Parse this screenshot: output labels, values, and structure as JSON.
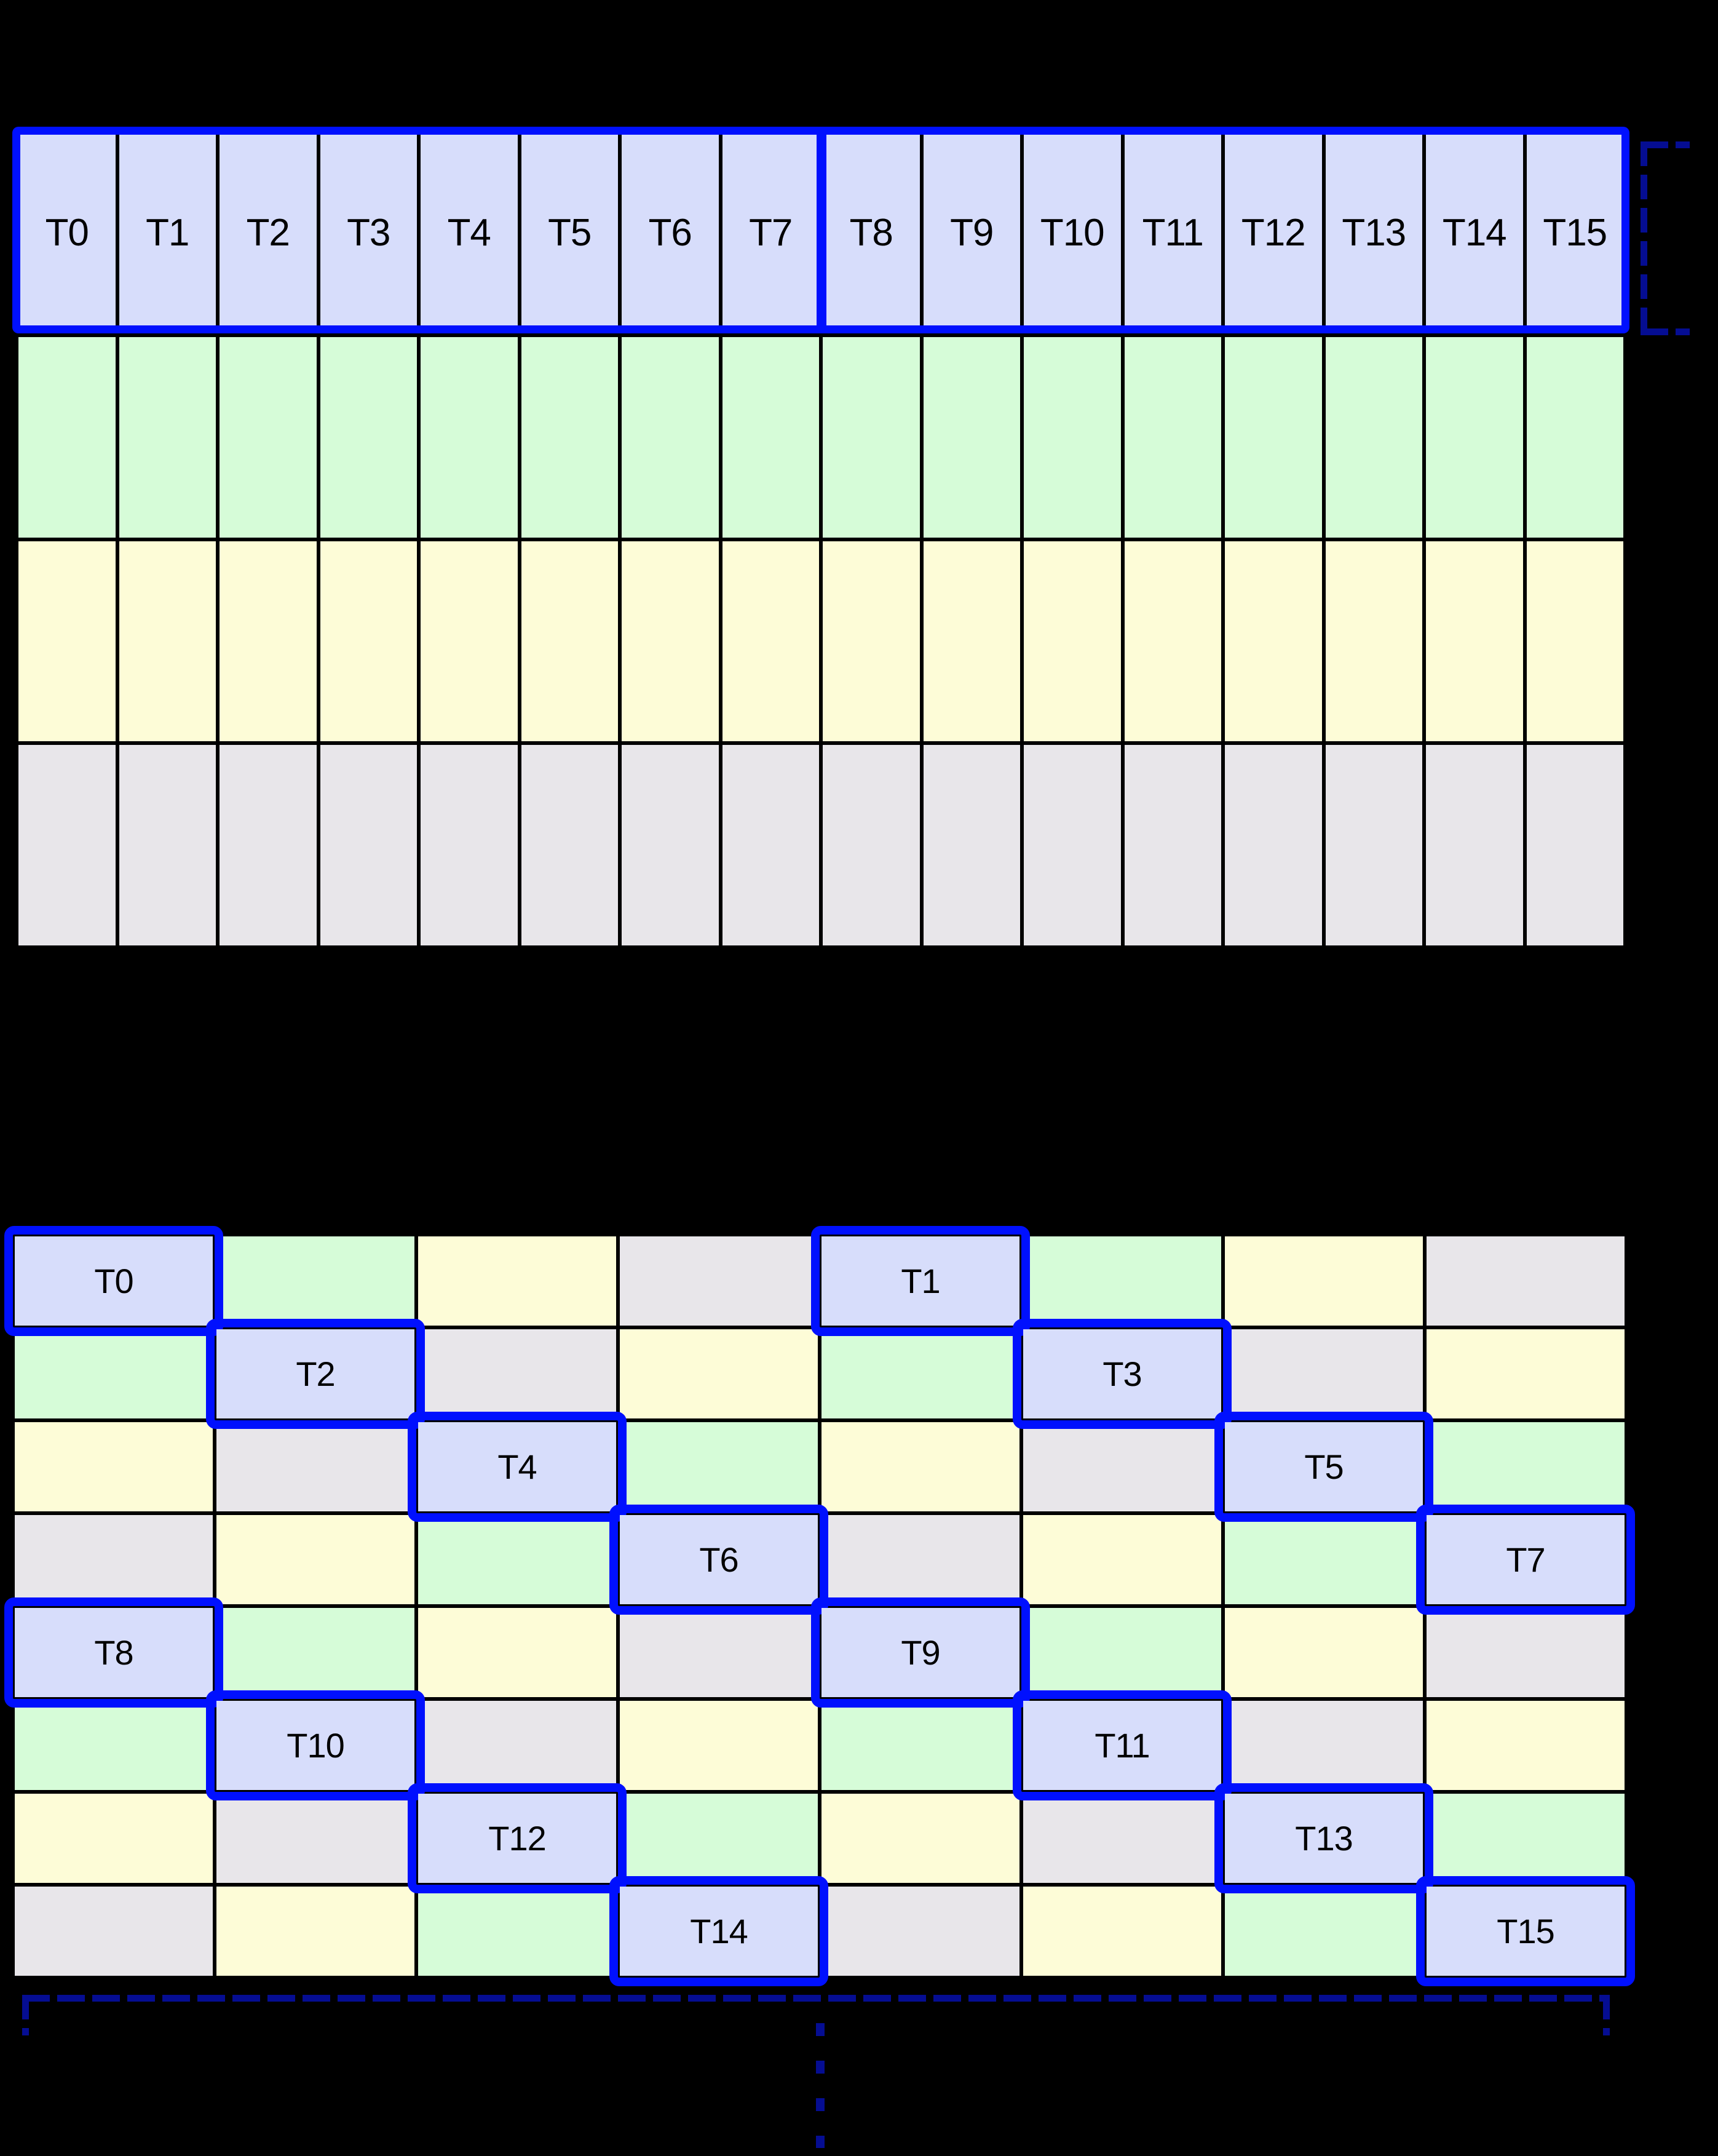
{
  "colors": {
    "lavender": "#d7ddfb",
    "green": "#d6fcd8",
    "yellow": "#fdfcd7",
    "gray": "#e8e6ea",
    "blue": "#0010fe",
    "navy": "#050d92",
    "line": "#000000"
  },
  "grid1": {
    "header_labels": [
      "T0",
      "T1",
      "T2",
      "T3",
      "T4",
      "T5",
      "T6",
      "T7",
      "T8",
      "T9",
      "T10",
      "T11",
      "T12",
      "T13",
      "T14",
      "T15"
    ],
    "body_row_colors": [
      "green",
      "yellow",
      "gray"
    ]
  },
  "grid2": {
    "rows": [
      [
        {
          "color": "blue",
          "label": "T0"
        },
        {
          "color": "green"
        },
        {
          "color": "yellow"
        },
        {
          "color": "gray"
        },
        {
          "color": "blue",
          "label": "T1"
        },
        {
          "color": "green"
        },
        {
          "color": "yellow"
        },
        {
          "color": "gray"
        }
      ],
      [
        {
          "color": "green"
        },
        {
          "color": "blue",
          "label": "T2"
        },
        {
          "color": "gray"
        },
        {
          "color": "yellow"
        },
        {
          "color": "green"
        },
        {
          "color": "blue",
          "label": "T3"
        },
        {
          "color": "gray"
        },
        {
          "color": "yellow"
        }
      ],
      [
        {
          "color": "yellow"
        },
        {
          "color": "gray"
        },
        {
          "color": "blue",
          "label": "T4"
        },
        {
          "color": "green"
        },
        {
          "color": "yellow"
        },
        {
          "color": "gray"
        },
        {
          "color": "blue",
          "label": "T5"
        },
        {
          "color": "green"
        }
      ],
      [
        {
          "color": "gray"
        },
        {
          "color": "yellow"
        },
        {
          "color": "green"
        },
        {
          "color": "blue",
          "label": "T6"
        },
        {
          "color": "gray"
        },
        {
          "color": "yellow"
        },
        {
          "color": "green"
        },
        {
          "color": "blue",
          "label": "T7"
        }
      ],
      [
        {
          "color": "blue",
          "label": "T8"
        },
        {
          "color": "green"
        },
        {
          "color": "yellow"
        },
        {
          "color": "gray"
        },
        {
          "color": "blue",
          "label": "T9"
        },
        {
          "color": "green"
        },
        {
          "color": "yellow"
        },
        {
          "color": "gray"
        }
      ],
      [
        {
          "color": "green"
        },
        {
          "color": "blue",
          "label": "T10"
        },
        {
          "color": "gray"
        },
        {
          "color": "yellow"
        },
        {
          "color": "green"
        },
        {
          "color": "blue",
          "label": "T11"
        },
        {
          "color": "gray"
        },
        {
          "color": "yellow"
        }
      ],
      [
        {
          "color": "yellow"
        },
        {
          "color": "gray"
        },
        {
          "color": "blue",
          "label": "T12"
        },
        {
          "color": "green"
        },
        {
          "color": "yellow"
        },
        {
          "color": "gray"
        },
        {
          "color": "blue",
          "label": "T13"
        },
        {
          "color": "green"
        }
      ],
      [
        {
          "color": "gray"
        },
        {
          "color": "yellow"
        },
        {
          "color": "green"
        },
        {
          "color": "blue",
          "label": "T14"
        },
        {
          "color": "gray"
        },
        {
          "color": "yellow"
        },
        {
          "color": "green"
        },
        {
          "color": "blue",
          "label": "T15"
        }
      ]
    ]
  }
}
